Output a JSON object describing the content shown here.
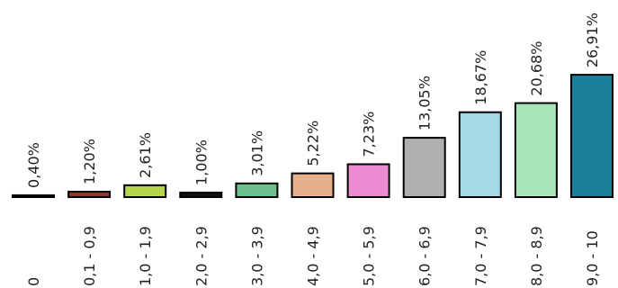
{
  "chart_data": {
    "type": "bar",
    "title": "",
    "xlabel": "",
    "ylabel": "",
    "categories": [
      "0",
      "0,1 - 0,9",
      "1,0 - 1,9",
      "2,0 - 2,9",
      "3,0 - 3,9",
      "4,0 - 4,9",
      "5,0 - 5,9",
      "6,0 - 6,9",
      "7,0 - 7,9",
      "8,0 - 8,9",
      "9,0 - 10"
    ],
    "values": [
      0.4,
      1.2,
      2.61,
      1.0,
      3.01,
      5.22,
      7.23,
      13.05,
      18.67,
      20.68,
      26.91
    ],
    "value_labels": [
      "0,40%",
      "1,20%",
      "2,61%",
      "1,00%",
      "3,01%",
      "5,22%",
      "7,23%",
      "13,05%",
      "18,67%",
      "20,68%",
      "26,91%"
    ],
    "colors": [
      "#ffffff",
      "#8c3b2a",
      "#b5d64c",
      "#111111",
      "#6cc08f",
      "#e8b08a",
      "#ec8ad2",
      "#b0b0b0",
      "#a6d9e6",
      "#a9e6b8",
      "#1c7f9a"
    ],
    "ylim": [
      0,
      28
    ],
    "grid": false,
    "legend": "none"
  }
}
